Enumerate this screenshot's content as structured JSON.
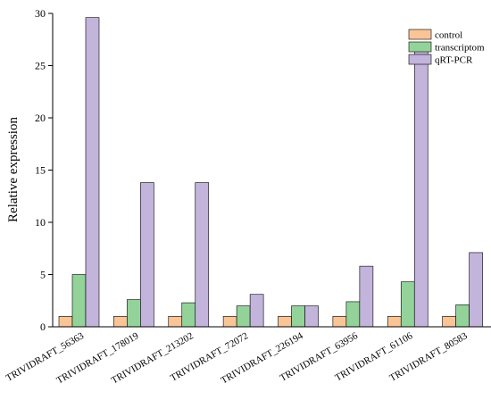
{
  "chart_data": {
    "type": "bar",
    "title": "",
    "xlabel": "",
    "ylabel": "Relative expression",
    "ylim": [
      0,
      30
    ],
    "yticks": [
      0,
      5,
      10,
      15,
      20,
      25,
      30
    ],
    "grid": false,
    "legend_position": "top-right",
    "categories": [
      "TRIVIDRAFT_56363",
      "TRIVIDRAFT_178019",
      "TRIVIDRAFT_213202",
      "TRIVIDRAFT_72072",
      "TRIVIDRAFT_226194",
      "TRIVIDRAFT_63956",
      "TRIVIDRAFT_61106",
      "TRIVIDRAFT_80583"
    ],
    "series": [
      {
        "name": "control",
        "color": "#f9c597",
        "values": [
          1,
          1,
          1,
          1,
          1,
          1,
          1,
          1
        ]
      },
      {
        "name": "transcriptom",
        "color": "#93d39a",
        "values": [
          5.0,
          2.6,
          2.3,
          2.0,
          2.0,
          2.4,
          4.3,
          2.1
        ]
      },
      {
        "name": "qRT-PCR",
        "color": "#c3b4dc",
        "values": [
          29.6,
          13.8,
          13.8,
          3.1,
          2.0,
          5.8,
          26.5,
          7.1
        ]
      }
    ]
  }
}
